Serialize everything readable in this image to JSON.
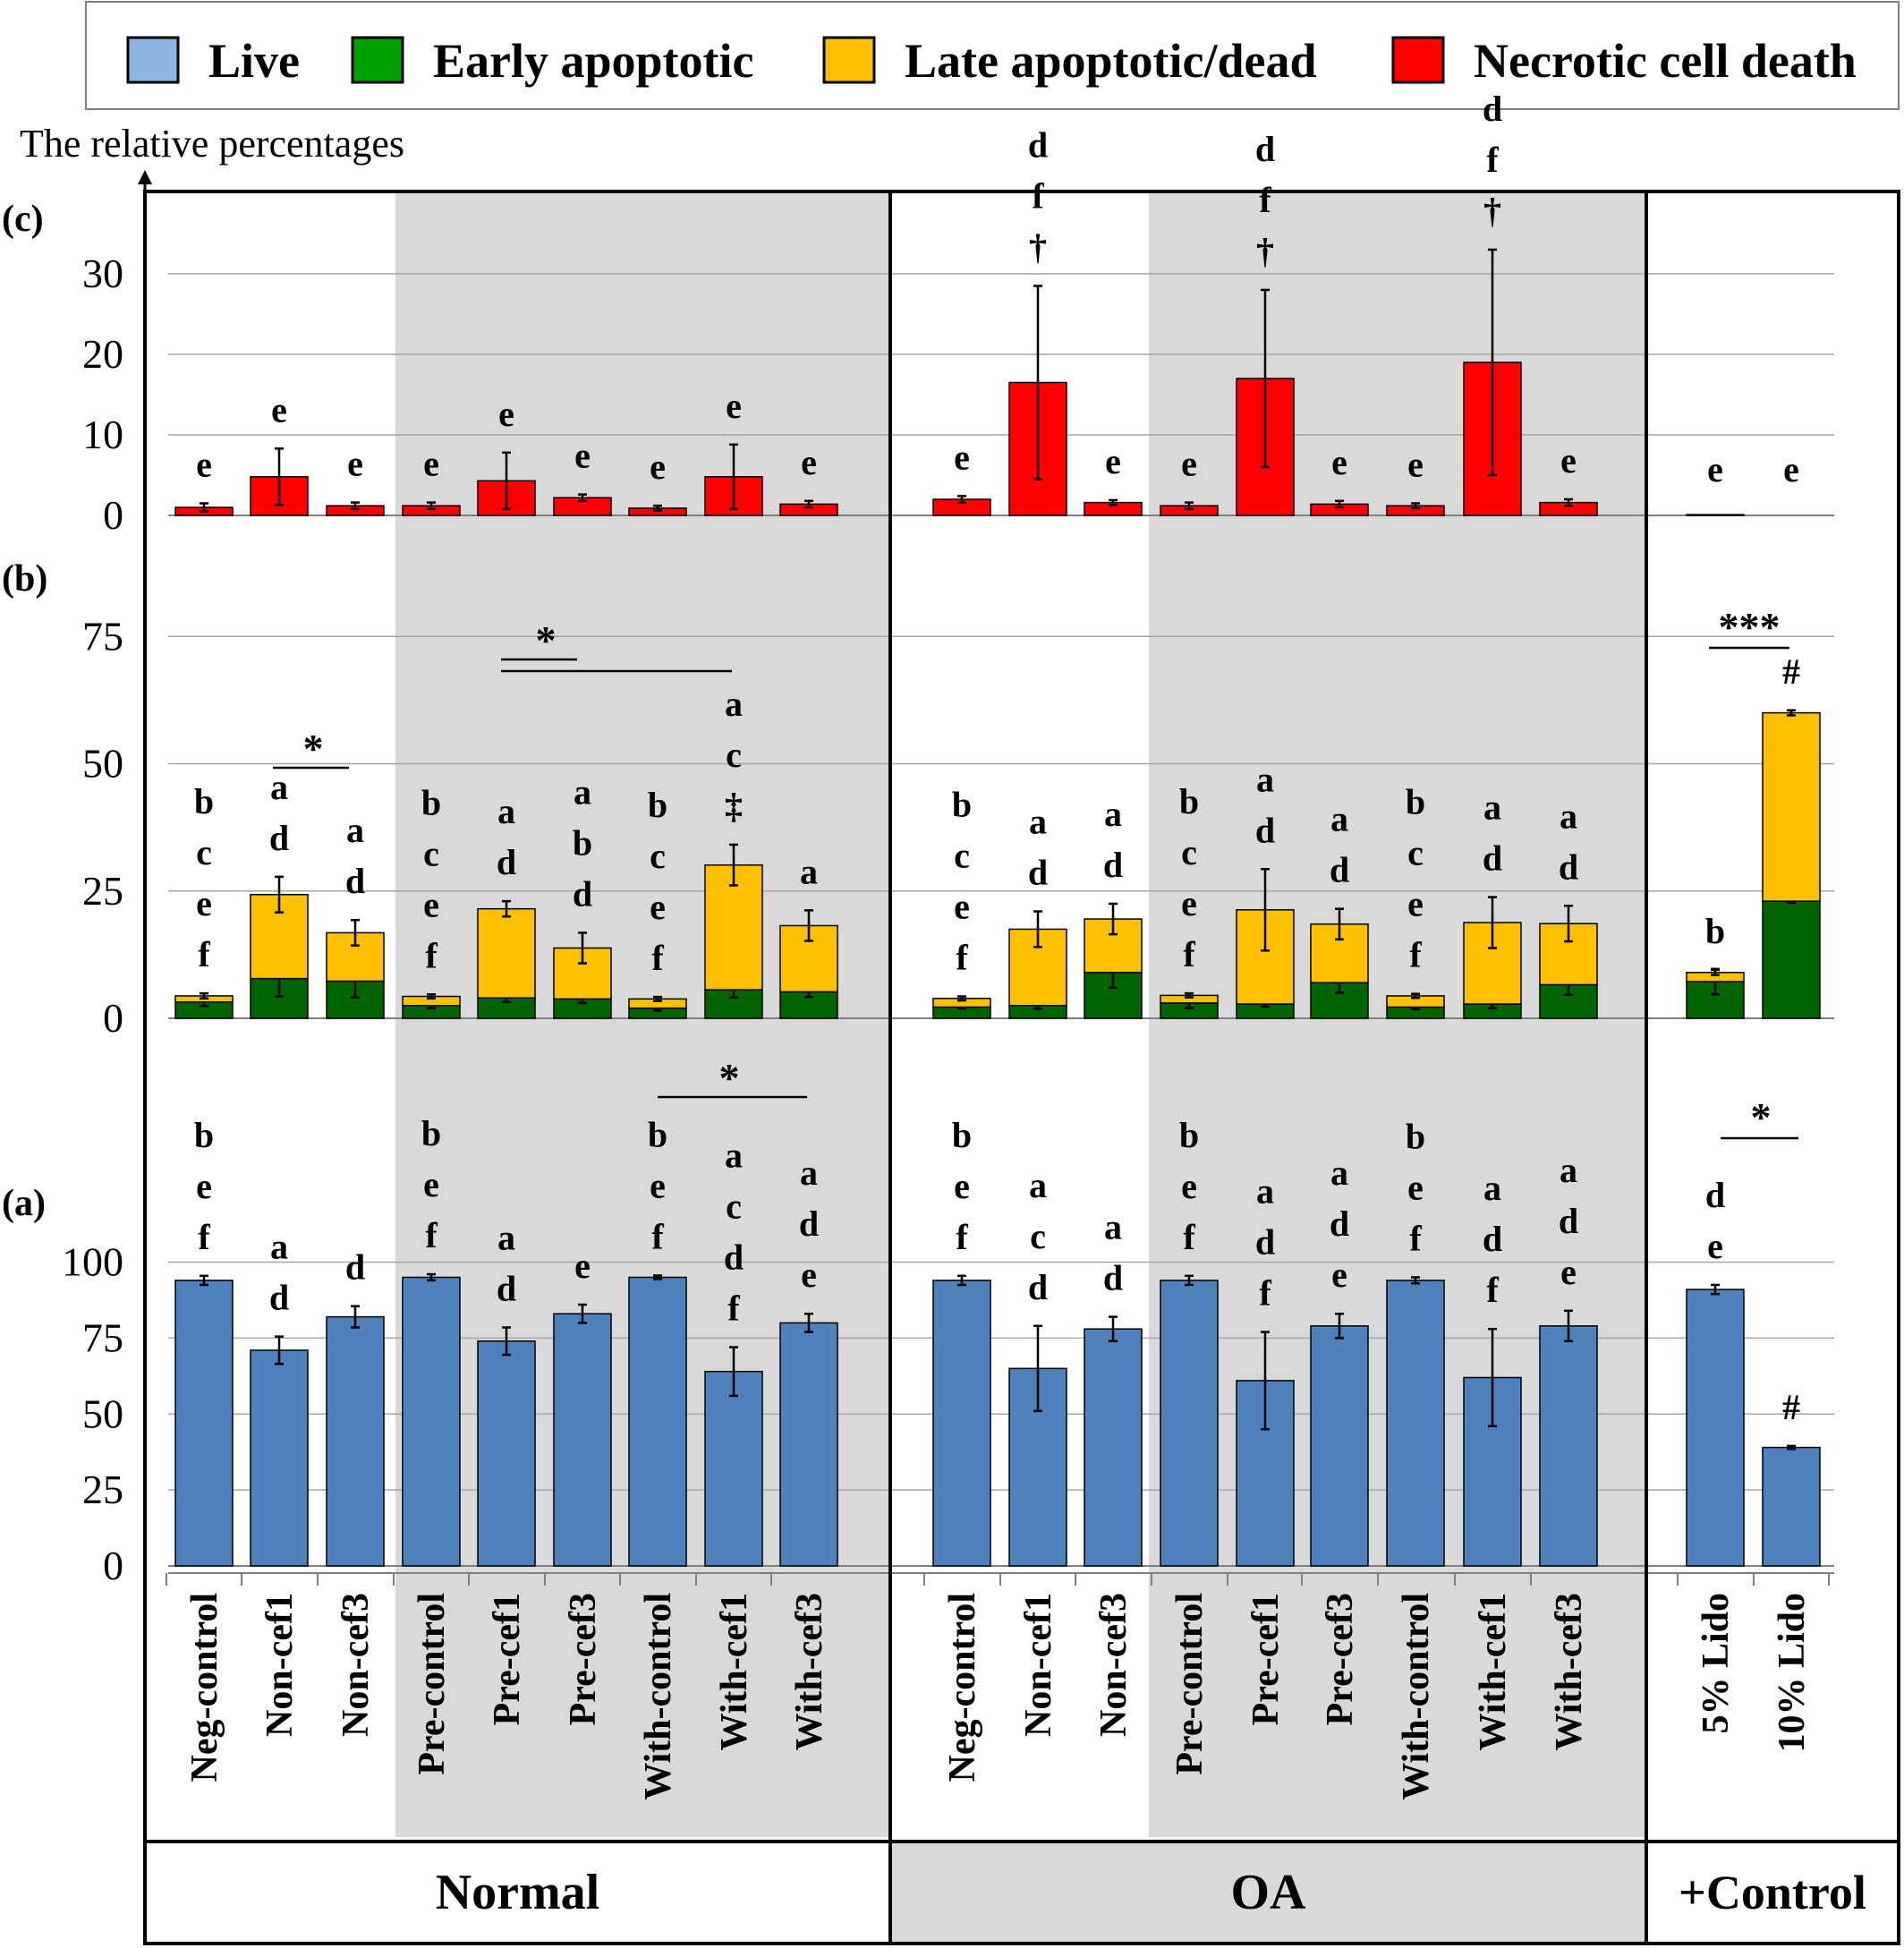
{
  "legend": [
    {
      "label": "Live",
      "color": "#8db4e2"
    },
    {
      "label": "Early apoptotic",
      "color": "#00a000"
    },
    {
      "label": "Late apoptotic/dead",
      "color": "#ffc000"
    },
    {
      "label": "Necrotic cell death",
      "color": "#ff0000"
    }
  ],
  "ylabel": "The relative percentages",
  "panel_labels": {
    "a": "(a)",
    "b": "(b)",
    "c": "(c)"
  },
  "groups": [
    {
      "label": "Normal"
    },
    {
      "label": "OA"
    },
    {
      "label": "+Control"
    }
  ],
  "categories": [
    "Neg-control",
    "Non-cef1",
    "Non-cef3",
    "Pre-control",
    "Pre-cef1",
    "Pre-cef3",
    "With-control",
    "With-cef1",
    "With-cef3",
    "Neg-control",
    "Non-cef1",
    "Non-cef3",
    "Pre-control",
    "Pre-cef1",
    "Pre-cef3",
    "With-control",
    "With-cef1",
    "With-cef3",
    "5% Lido",
    "10% Lido"
  ],
  "chart_data": [
    {
      "type": "bar",
      "panel": "(c)",
      "yticks": [
        0,
        10,
        20,
        30
      ],
      "ylim": [
        0,
        35
      ],
      "series": [
        {
          "name": "Necrotic cell death",
          "color": "#ff0000",
          "values": [
            1.0,
            4.8,
            1.2,
            1.2,
            4.3,
            2.2,
            0.9,
            4.8,
            1.4,
            2.0,
            16.5,
            1.6,
            1.2,
            17.0,
            1.4,
            1.2,
            19.0,
            1.6,
            0.1,
            0
          ],
          "errors": [
            0.5,
            3.5,
            0.4,
            0.4,
            3.5,
            0.4,
            0.3,
            4.0,
            0.4,
            0.4,
            12.0,
            0.3,
            0.4,
            11.0,
            0.4,
            0.3,
            14.0,
            0.4,
            0,
            0
          ]
        }
      ],
      "annotations": [
        "e",
        "e",
        "e",
        "e",
        "e",
        "e",
        "e",
        "e",
        "e",
        "e",
        "d\nf\n†",
        "e",
        "e",
        "d\nf\n†",
        "e",
        "e",
        "d\nf\n†",
        "e",
        "e",
        "e"
      ]
    },
    {
      "type": "bar",
      "stacked": true,
      "panel": "(b)",
      "yticks": [
        0,
        25,
        50,
        75
      ],
      "ylim": [
        0,
        75
      ],
      "series": [
        {
          "name": "Early apoptotic",
          "color": "#006400",
          "values": [
            3.2,
            7.8,
            7.3,
            2.5,
            4.0,
            3.8,
            2.0,
            5.6,
            5.2,
            2.2,
            2.5,
            9.0,
            3.0,
            2.8,
            7.0,
            2.2,
            2.8,
            6.6,
            7.2,
            23.0
          ],
          "errors": [
            0.8,
            3.5,
            3.2,
            0.5,
            0.8,
            0.8,
            0.5,
            1.5,
            1.0,
            0.3,
            0.6,
            3.0,
            1.0,
            0.5,
            2.0,
            0.4,
            0.8,
            2.0,
            2.5,
            0.3
          ]
        },
        {
          "name": "Late apoptotic/dead",
          "color": "#ffc000",
          "values": [
            1.2,
            16.5,
            9.5,
            1.8,
            17.5,
            10.0,
            1.8,
            24.5,
            13.0,
            1.7,
            15.0,
            10.5,
            1.5,
            18.5,
            11.5,
            2.2,
            16.0,
            12.0,
            1.8,
            37.0
          ],
          "errors": [
            0.5,
            3.5,
            2.5,
            0.4,
            1.5,
            3.0,
            0.4,
            4.0,
            3.0,
            0.4,
            3.5,
            3.0,
            0.4,
            8.0,
            3.0,
            0.4,
            5.0,
            3.5,
            0.5,
            0.5
          ]
        }
      ],
      "annotations": [
        "b\nc\ne\nf",
        "a\nd",
        "a\nd",
        "b\nc\ne\nf",
        "a\nd",
        "a\nb\nd",
        "b\nc\ne\nf",
        "a\nc\n‡",
        "a",
        "b\nc\ne\nf",
        "a\nd",
        "a\nd",
        "b\nc\ne\nf",
        "a\nd",
        "a\nd",
        "b\nc\ne\nf",
        "a\nd",
        "a\nd",
        "b",
        "#"
      ],
      "significance": [
        "*",
        "*",
        "***"
      ]
    },
    {
      "type": "bar",
      "panel": "(a)",
      "yticks": [
        0,
        25,
        50,
        75,
        100
      ],
      "ylim": [
        0,
        100
      ],
      "series": [
        {
          "name": "Live",
          "color": "#4f81bd",
          "values": [
            94,
            71,
            82,
            95,
            74,
            83,
            95,
            64,
            80,
            94,
            65,
            78,
            94,
            61,
            79,
            94,
            62,
            79,
            91,
            39
          ],
          "errors": [
            1.5,
            4.5,
            3.5,
            1.0,
            4.5,
            3.0,
            0.6,
            8.0,
            3.0,
            1.5,
            14.0,
            4.0,
            1.5,
            16.0,
            4.0,
            1.0,
            16.0,
            5.0,
            1.5,
            0.5
          ]
        }
      ],
      "annotations": [
        "b\ne\nf",
        "a\nd",
        "d",
        "b\ne\nf",
        "a\nd",
        "e",
        "b\ne\nf",
        "a\nc\nd\nf",
        "a\nd\ne",
        "b\ne\nf",
        "a\nc\nd",
        "a\nd",
        "b\ne\nf",
        "a\nd\nf",
        "a\nd\ne",
        "b\ne\nf",
        "a\nd\nf",
        "a\nd\ne",
        "d\ne",
        "#"
      ],
      "significance": [
        "*",
        "*"
      ]
    }
  ]
}
